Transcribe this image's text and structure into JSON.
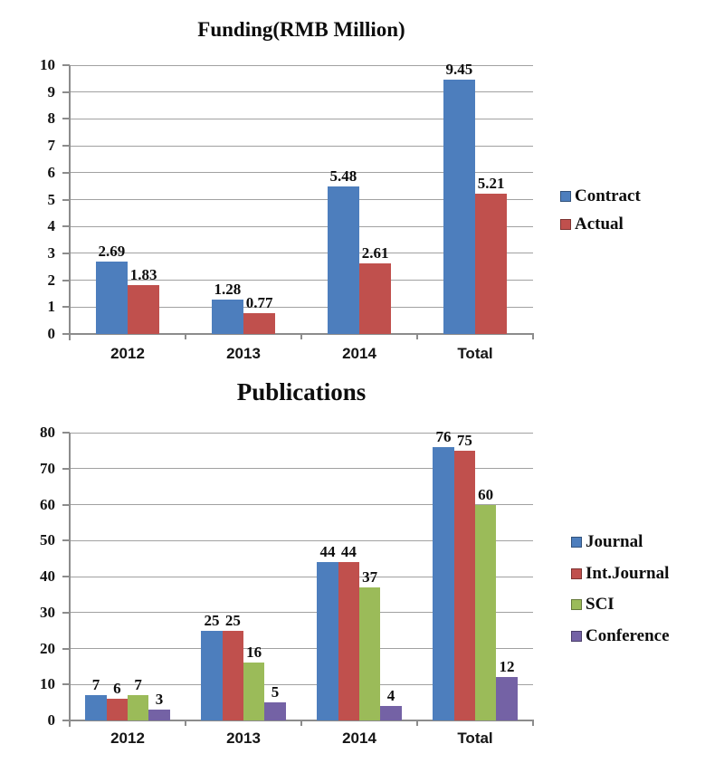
{
  "chart_data": [
    {
      "type": "bar",
      "title": "Funding(RMB Million)",
      "categories": [
        "2012",
        "2013",
        "2014",
        "Total"
      ],
      "series": [
        {
          "name": "Contract",
          "color": "#4d7ebd",
          "values": [
            2.69,
            1.28,
            5.48,
            9.45
          ]
        },
        {
          "name": "Actual",
          "color": "#c0504d",
          "values": [
            1.83,
            0.77,
            2.61,
            5.21
          ]
        }
      ],
      "ylim": [
        0,
        10
      ],
      "y_tick_step": 1,
      "y_tick_labels": [
        "0",
        "1",
        "2",
        "3",
        "4",
        "5",
        "6",
        "7",
        "8",
        "9",
        "10"
      ],
      "xlabel": "",
      "ylabel": "",
      "grid": true,
      "legend_position": "right",
      "data_labels_shown": true
    },
    {
      "type": "bar",
      "title": "Publications",
      "categories": [
        "2012",
        "2013",
        "2014",
        "Total"
      ],
      "series": [
        {
          "name": "Journal",
          "color": "#4d7ebd",
          "values": [
            7,
            25,
            44,
            76
          ]
        },
        {
          "name": "Int.Journal",
          "color": "#c0504d",
          "values": [
            6,
            25,
            44,
            75
          ]
        },
        {
          "name": "SCI",
          "color": "#9bbb59",
          "values": [
            7,
            16,
            37,
            60
          ]
        },
        {
          "name": "Conference",
          "color": "#7462a5",
          "values": [
            3,
            5,
            4,
            12
          ]
        }
      ],
      "ylim": [
        0,
        80
      ],
      "y_tick_step": 10,
      "y_tick_labels": [
        "0",
        "10",
        "20",
        "30",
        "40",
        "50",
        "60",
        "70",
        "80"
      ],
      "xlabel": "",
      "ylabel": "",
      "grid": true,
      "legend_position": "right",
      "data_labels_shown": true
    }
  ],
  "colors": {
    "background": "#ffffff",
    "gridline": "#a1a1a1",
    "axis": "#8c8c8c",
    "text": "#0d0d0d"
  }
}
